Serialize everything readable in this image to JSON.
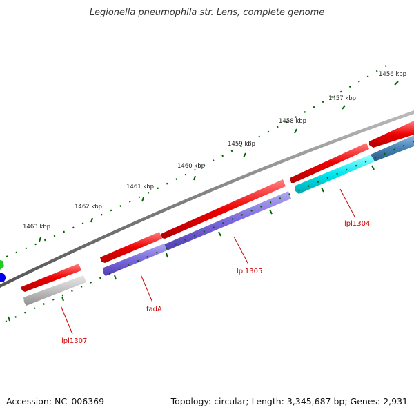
{
  "title": "Legionella pneumophila str. Lens, complete genome",
  "footer": {
    "accession": "Accession: NC_006369",
    "summary": "Topology: circular; Length: 3,345,687 bp; Genes: 2,931"
  },
  "ruler": {
    "labels": [
      "1456 kbp",
      "1457 kbp",
      "1458 kbp",
      "1459 kbp",
      "1460 kbp",
      "1461 kbp",
      "1462 kbp",
      "1463 kbp"
    ]
  },
  "genes": [
    {
      "name": "lpl1304",
      "label": "lpl1304",
      "color": "#00e5ee"
    },
    {
      "name": "lpl1305",
      "label": "lpl1305",
      "color": "#7b68dd"
    },
    {
      "name": "fadA",
      "label": "fadA",
      "color": "#7b68dd"
    },
    {
      "name": "lpl1307",
      "label": "lpl1307",
      "color": "#c0c0c0"
    },
    {
      "name": "next-gene",
      "label": "",
      "color": "#4682b4"
    }
  ],
  "colors": {
    "cds": "#ee0000",
    "backbone": "#808080",
    "tick": "#006400"
  }
}
